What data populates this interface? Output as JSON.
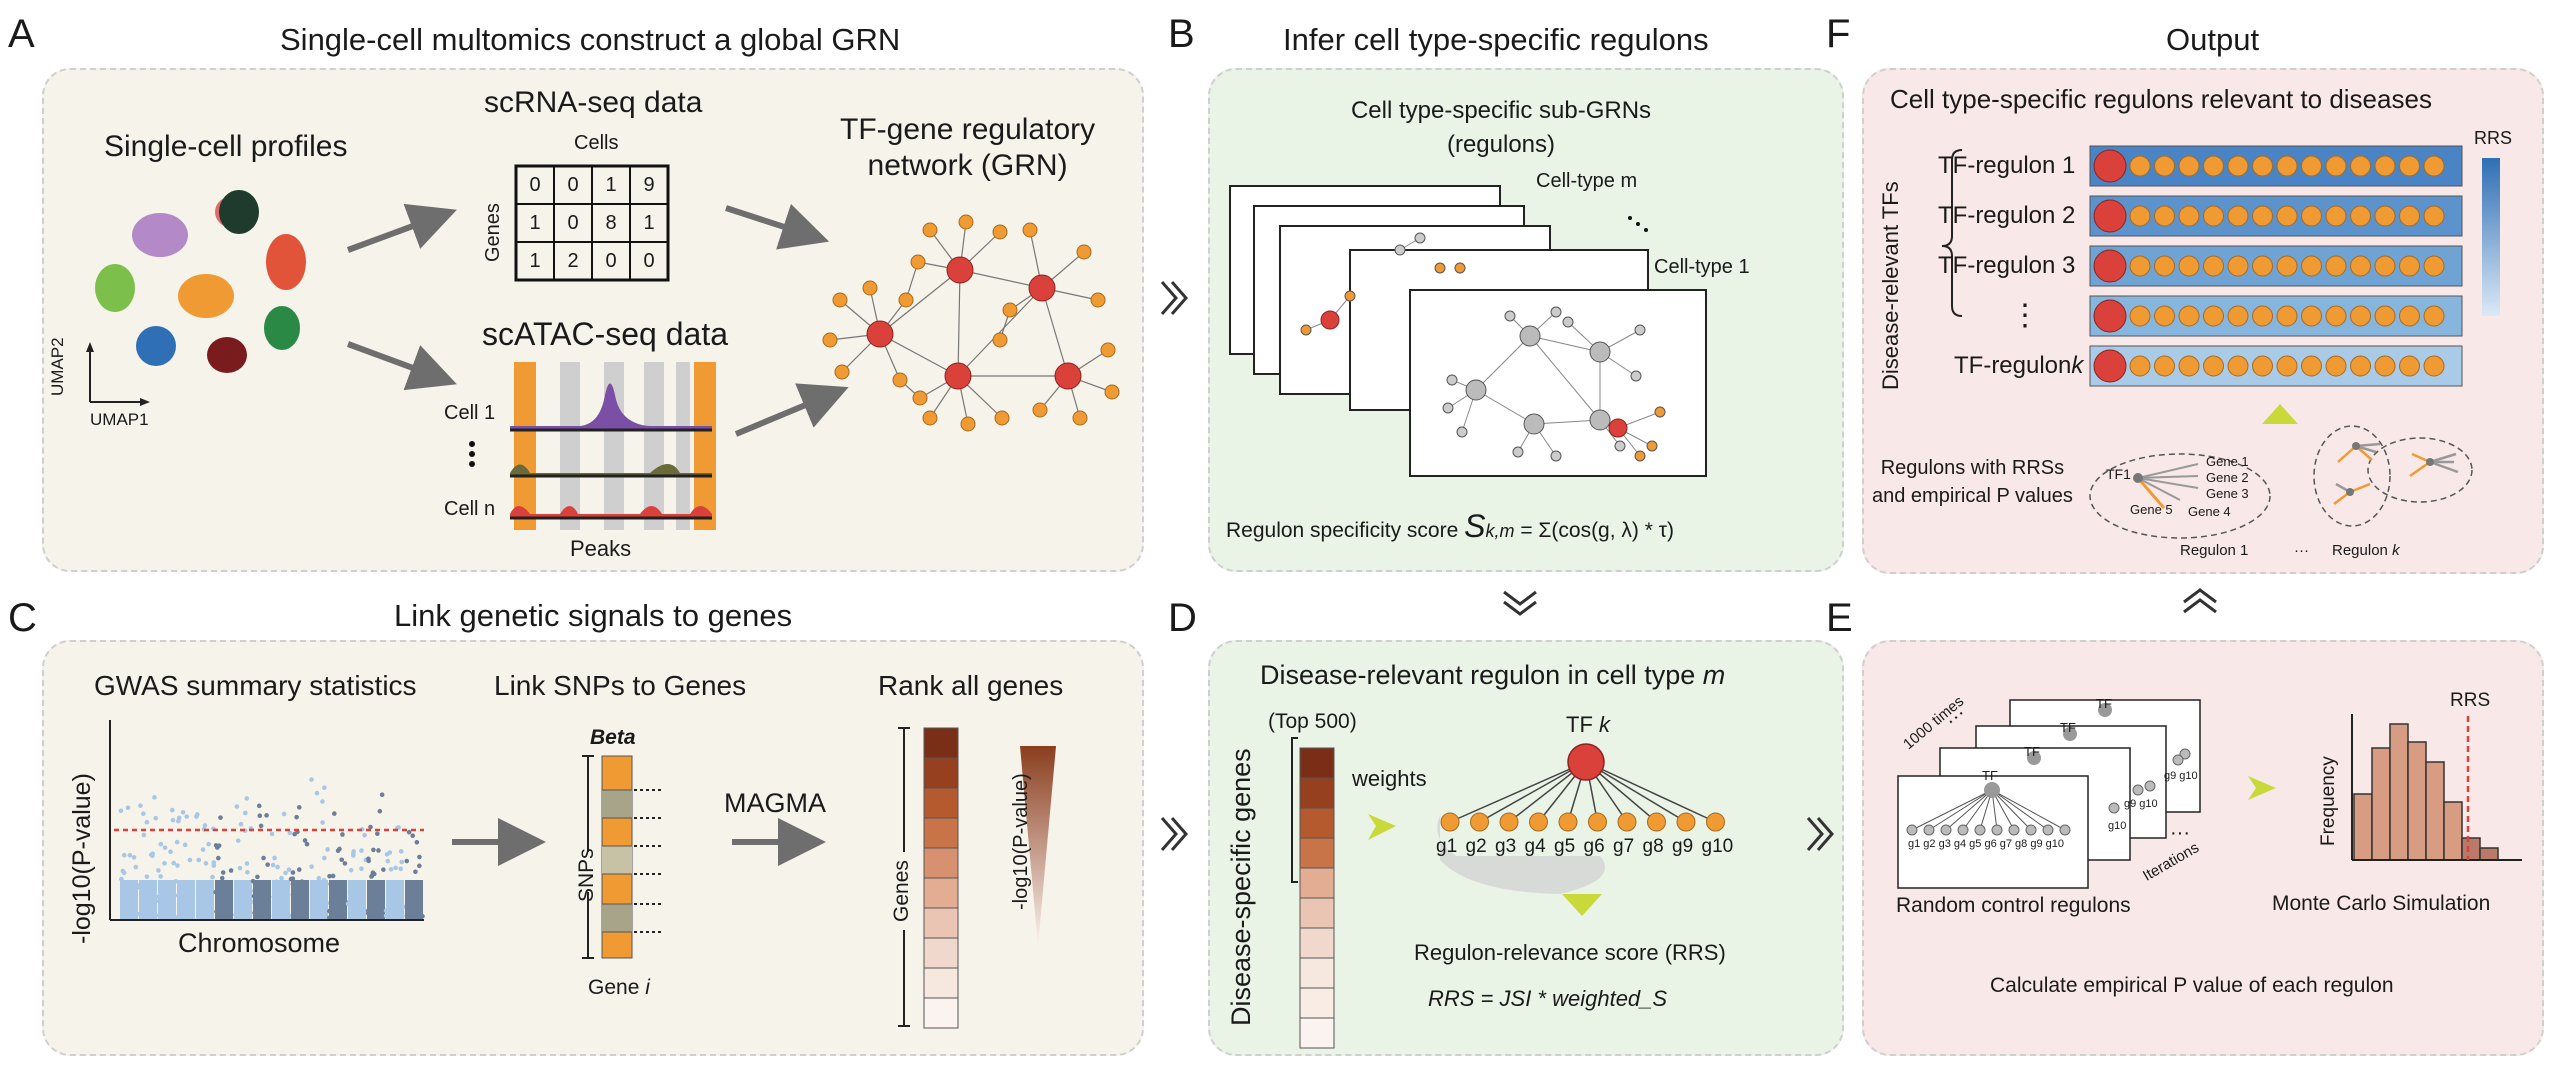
{
  "panels": {
    "A": {
      "letter": "A",
      "title": "Single-cell multomics construct a global GRN",
      "single_cell": "Single-cell profiles",
      "umap1": "UMAP1",
      "umap2": "UMAP2",
      "scrna": "scRNA-seq data",
      "cells": "Cells",
      "genes": "Genes",
      "matrix": [
        [
          "0",
          "0",
          "1",
          "9"
        ],
        [
          "1",
          "0",
          "8",
          "1"
        ],
        [
          "1",
          "2",
          "0",
          "0"
        ]
      ],
      "scatac": "scATAC-seq data",
      "cell1": "Cell 1",
      "celln": "Cell n",
      "peaks": "Peaks",
      "grn": "TF-gene regulatory",
      "grn2": "network (GRN)"
    },
    "B": {
      "letter": "B",
      "title": "Infer cell type-specific regulons",
      "sub": "Cell type-specific sub-GRNs",
      "sub2": "(regulons)",
      "ctm": "Cell-type m",
      "ct1": "Cell-type 1",
      "score_prefix": "Regulon specificity score",
      "score_s": "S",
      "score_sub": "k,m",
      "score_formula": "= Σ(cos(g, λ) * τ)"
    },
    "C": {
      "letter": "C",
      "title": "Link genetic signals to genes",
      "gwas": "GWAS summary statistics",
      "ylab": "-log10(P-value)",
      "xlab": "Chromosome",
      "link": "Link SNPs to Genes",
      "beta": "Beta",
      "snps": "SNPs",
      "gene_i_prefix": "Gene",
      "gene_i": "i",
      "magma": "MAGMA",
      "rank": "Rank all genes",
      "genes": "Genes",
      "plog": "-log10(P-value)"
    },
    "D": {
      "letter": "D",
      "title_prefix": "Disease-relevant regulon in cell type",
      "title_m": "m",
      "top500": "(Top 500)",
      "dsg": "Disease-specific genes",
      "weights": "weights",
      "tf_prefix": "TF",
      "tf_k": "k",
      "genes": [
        "g1",
        "g2",
        "g3",
        "g4",
        "g5",
        "g6",
        "g7",
        "g8",
        "g9",
        "g10"
      ],
      "rrs": "Regulon-relevance score (RRS)",
      "formula": "RRS = JSI * weighted_S"
    },
    "E": {
      "letter": "E",
      "times": "1000 times",
      "tf": "TF",
      "iterations": "Iterations",
      "genes_small": "g1 g2 g3 g4 g5 g6 g7 g8 g9 g10",
      "g9g10": "g9 g10",
      "g10": "g10",
      "random": "Random control regulons",
      "monte": "Monte Carlo Simulation",
      "freq": "Frequency",
      "rrs": "RRS",
      "calc": "Calculate empirical P value of each regulon"
    },
    "F": {
      "letter": "F",
      "title": "Output",
      "sub": "Cell type-specific regulons relevant to diseases",
      "dtf": "Disease-relevant TFs",
      "rrs": "RRS",
      "regulons": [
        "TF-regulon 1",
        "TF-regulon 2",
        "TF-regulon 3"
      ],
      "regk_prefix": "TF-regulon",
      "regk_k": "k",
      "with": "Regulons with RRSs",
      "with2": "and empirical P values",
      "tf1": "TF1",
      "g1": "Gene 1",
      "g2": "Gene 2",
      "g3": "Gene 3",
      "g4": "Gene 4",
      "g5": "Gene 5",
      "reg1": "Regulon 1",
      "dots": "···",
      "regk_prefix2": "Regulon",
      "regk_k2": "k"
    }
  },
  "colors": {
    "yellow_bg": "#f5f3ea",
    "green_bg": "#e9f3e6",
    "pink_bg": "#f8e8e7",
    "node_red": "#d9413a",
    "node_orange": "#ef9a32",
    "arrow_gray": "#6e6e6e",
    "lime": "#c9d93a"
  }
}
